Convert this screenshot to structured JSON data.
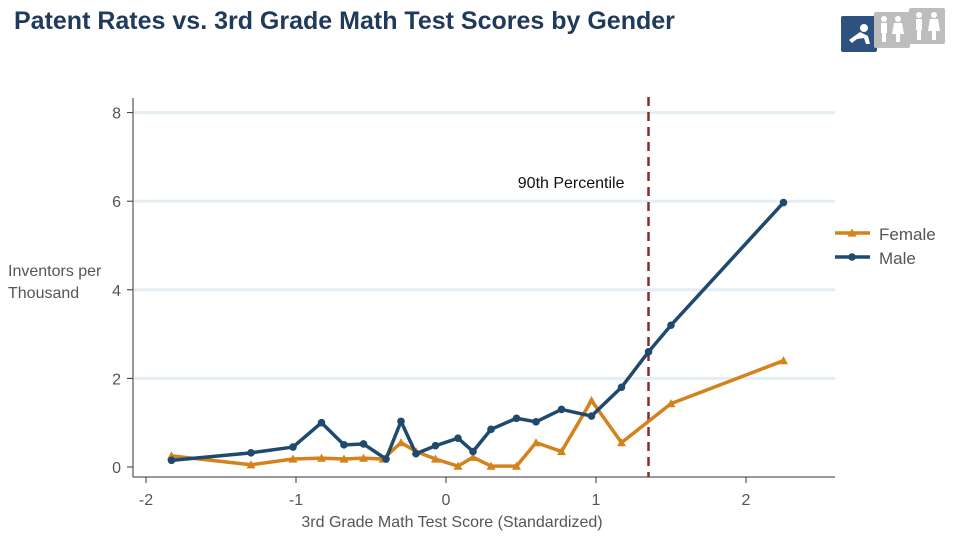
{
  "header": {
    "title": "Patent Rates vs. 3rd Grade Math Test Scores by Gender"
  },
  "icons": {
    "child_icon": "child-icon",
    "family_icon": "family-icon",
    "adults_icon": "adults-icon"
  },
  "colors": {
    "female": "#d4821b",
    "male": "#1f4a6e",
    "percentile_line": "#8b2a2a",
    "gridline": "#e3edf2",
    "icon_active": "#2d5281",
    "icon_inactive": "#bdbdbd"
  },
  "chart_data": {
    "type": "line",
    "title": "Patent Rates vs. 3rd Grade Math Test Scores by Gender",
    "xlabel": "3rd Grade Math Test Score (Standardized)",
    "ylabel_lines": [
      "Inventors per",
      "Thousand"
    ],
    "xlim": [
      -2.1,
      2.6
    ],
    "ylim": [
      -0.2,
      8.3
    ],
    "xticks": [
      -2,
      -1,
      0,
      1,
      2
    ],
    "xtick_labels": [
      "-2",
      "-1",
      "0",
      "1",
      "2"
    ],
    "yticks": [
      0,
      2,
      4,
      6,
      8
    ],
    "ytick_labels": [
      "0",
      "2",
      "4",
      "6",
      "8"
    ],
    "grid": true,
    "legend_position": "right",
    "annotations": [
      {
        "text": "90th Percentile",
        "x": 1.35,
        "type": "vertical-dashed-line"
      }
    ],
    "series": [
      {
        "name": "Female",
        "marker": "triangle",
        "x": [
          -1.83,
          -1.3,
          -1.02,
          -0.83,
          -0.68,
          -0.55,
          -0.42,
          -0.3,
          -0.2,
          -0.07,
          0.08,
          0.18,
          0.3,
          0.47,
          0.6,
          0.77,
          0.97,
          1.17,
          1.5,
          2.25
        ],
        "y": [
          0.25,
          0.05,
          0.18,
          0.2,
          0.18,
          0.2,
          0.18,
          0.55,
          0.35,
          0.18,
          0.02,
          0.22,
          0.02,
          0.02,
          0.55,
          0.35,
          1.5,
          0.55,
          1.43,
          2.4
        ]
      },
      {
        "name": "Male",
        "marker": "circle",
        "x": [
          -1.83,
          -1.3,
          -1.02,
          -0.83,
          -0.68,
          -0.55,
          -0.4,
          -0.3,
          -0.2,
          -0.07,
          0.08,
          0.18,
          0.3,
          0.47,
          0.6,
          0.77,
          0.97,
          1.17,
          1.35,
          1.5,
          2.25
        ],
        "y": [
          0.15,
          0.32,
          0.45,
          1.0,
          0.5,
          0.52,
          0.18,
          1.03,
          0.3,
          0.48,
          0.65,
          0.35,
          0.85,
          1.1,
          1.02,
          1.3,
          1.15,
          1.8,
          2.6,
          3.2,
          5.97
        ]
      }
    ]
  }
}
